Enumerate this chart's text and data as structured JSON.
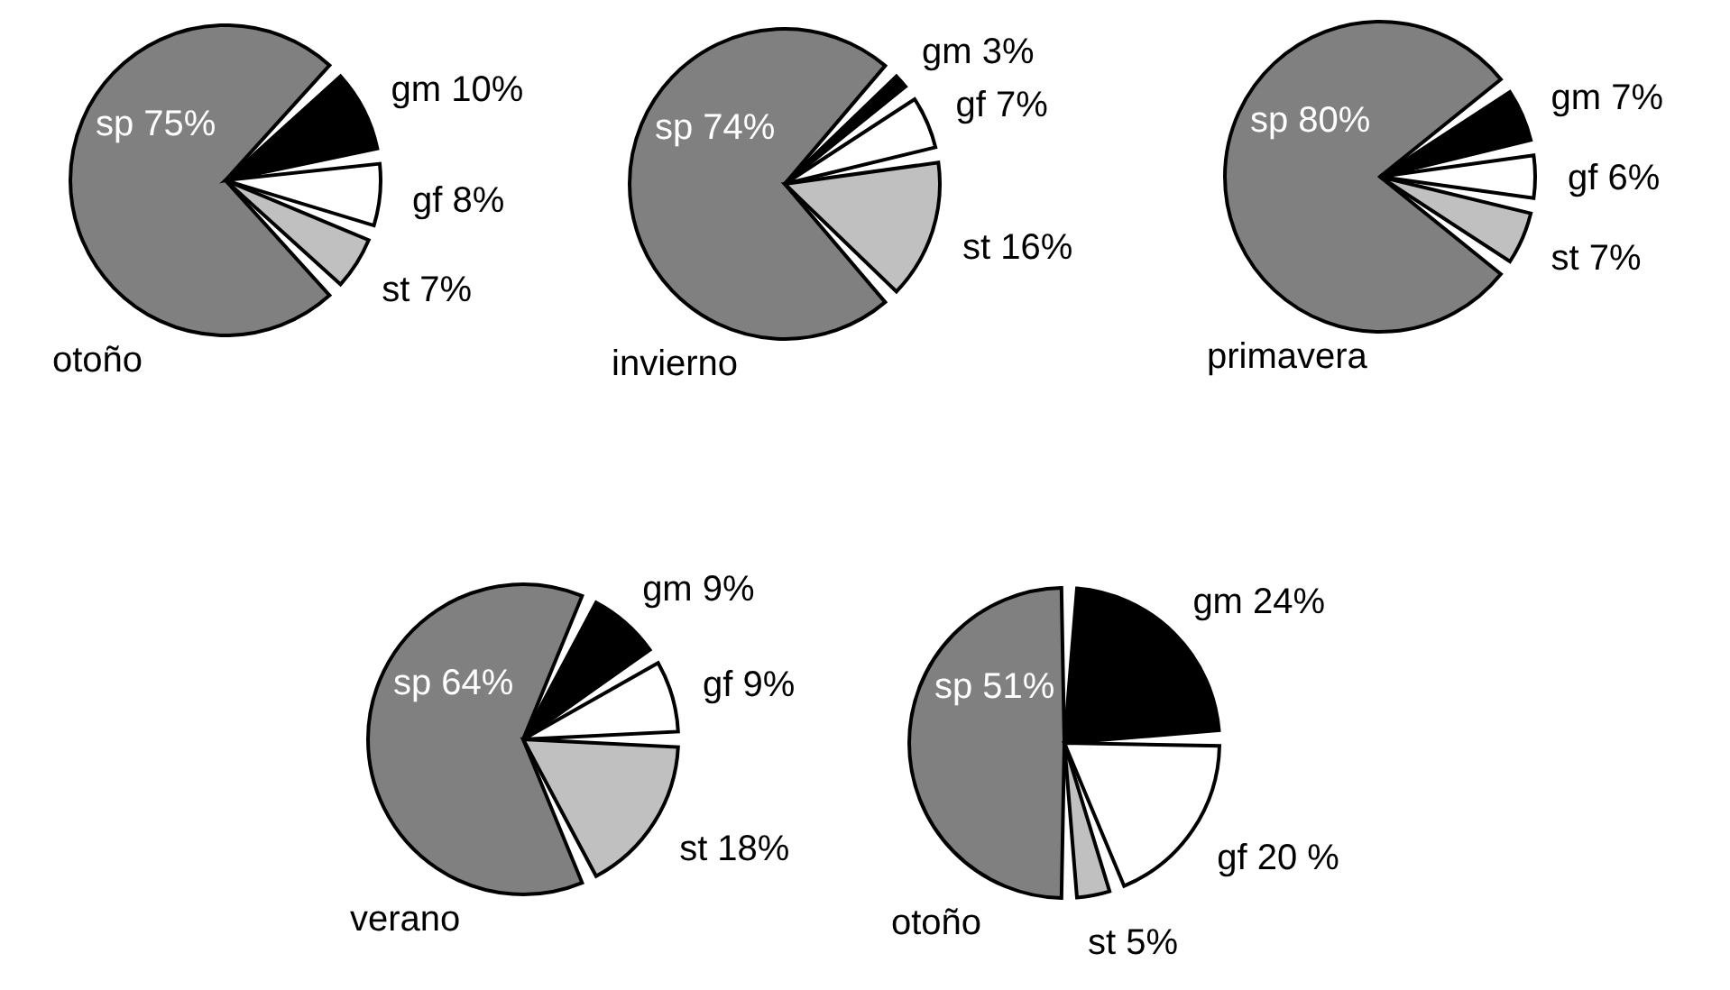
{
  "chart_data": [
    {
      "type": "pie",
      "title": "otoño",
      "categories": [
        "sp",
        "gm",
        "gf",
        "st"
      ],
      "values": [
        75,
        10,
        8,
        7
      ],
      "value_labels": [
        "75%",
        "10%",
        "8%",
        "7%"
      ],
      "colors": [
        "#808080",
        "#000000",
        "#ffffff",
        "#c0c0c0"
      ]
    },
    {
      "type": "pie",
      "title": "invierno",
      "categories": [
        "sp",
        "gm",
        "gf",
        "st"
      ],
      "values": [
        74,
        3,
        7,
        16
      ],
      "value_labels": [
        "74%",
        "3%",
        "7%",
        "16%"
      ],
      "colors": [
        "#808080",
        "#000000",
        "#ffffff",
        "#c0c0c0"
      ]
    },
    {
      "type": "pie",
      "title": "primavera",
      "categories": [
        "sp",
        "gm",
        "gf",
        "st"
      ],
      "values": [
        80,
        7,
        6,
        7
      ],
      "value_labels": [
        "80%",
        "7%",
        "6%",
        "7%"
      ],
      "colors": [
        "#808080",
        "#000000",
        "#ffffff",
        "#c0c0c0"
      ]
    },
    {
      "type": "pie",
      "title": "verano",
      "categories": [
        "sp",
        "gm",
        "gf",
        "st"
      ],
      "values": [
        64,
        9,
        9,
        18
      ],
      "value_labels": [
        "64%",
        "9%",
        "9%",
        "18%"
      ],
      "colors": [
        "#808080",
        "#000000",
        "#ffffff",
        "#c0c0c0"
      ]
    },
    {
      "type": "pie",
      "title": "otoño",
      "categories": [
        "sp",
        "gm",
        "gf",
        "st"
      ],
      "values": [
        51,
        24,
        20,
        5
      ],
      "value_labels": [
        "51%",
        "24%",
        "20 %",
        "5%"
      ],
      "colors": [
        "#808080",
        "#000000",
        "#ffffff",
        "#c0c0c0"
      ]
    }
  ]
}
